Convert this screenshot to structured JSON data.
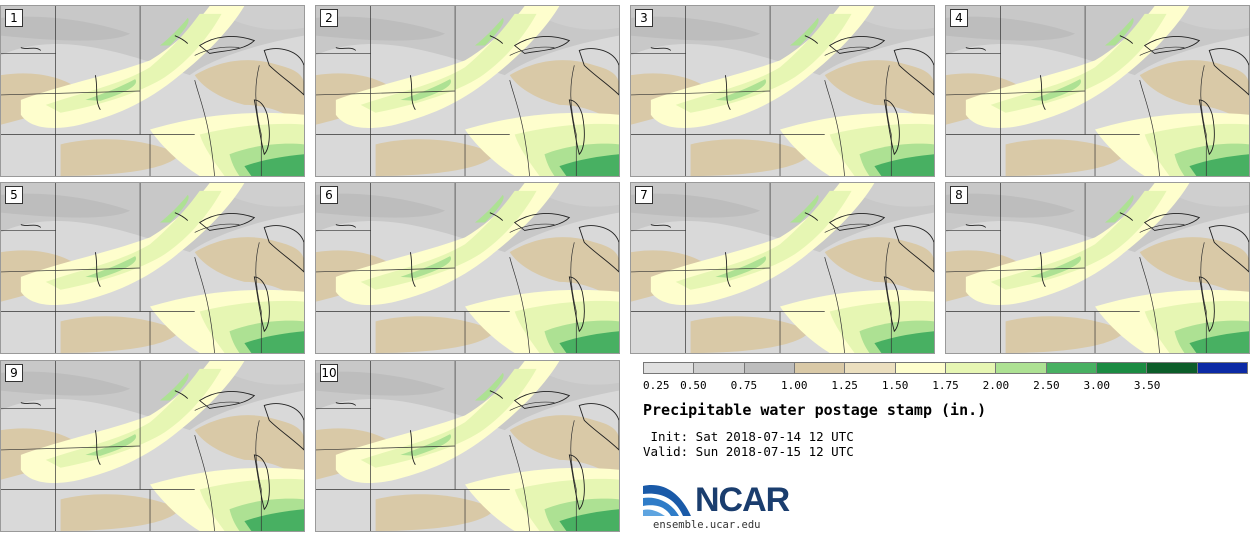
{
  "panels": [
    {
      "label": "1"
    },
    {
      "label": "2"
    },
    {
      "label": "3"
    },
    {
      "label": "4"
    },
    {
      "label": "5"
    },
    {
      "label": "6"
    },
    {
      "label": "7"
    },
    {
      "label": "8"
    },
    {
      "label": "9"
    },
    {
      "label": "10"
    }
  ],
  "colorbar": {
    "colors": [
      "#e0e0e0",
      "#cecece",
      "#bdbdbd",
      "#d9c9a7",
      "#ebdfbf",
      "#fefecd",
      "#e6f6b3",
      "#ade193",
      "#48b062",
      "#1b8b42",
      "#0c5d29",
      "#0c2aa5"
    ],
    "ticks": [
      "0.25",
      "0.50",
      "0.75",
      "1.00",
      "1.25",
      "1.50",
      "1.75",
      "2.00",
      "2.50",
      "3.00",
      "3.50"
    ]
  },
  "title": "Precipitable water postage stamp (in.)",
  "init_line": " Init: Sat 2018-07-14 12 UTC",
  "valid_line": "Valid: Sun 2018-07-15 12 UTC",
  "logo": {
    "name": "NCAR",
    "url": "ensemble.ucar.edu"
  }
}
